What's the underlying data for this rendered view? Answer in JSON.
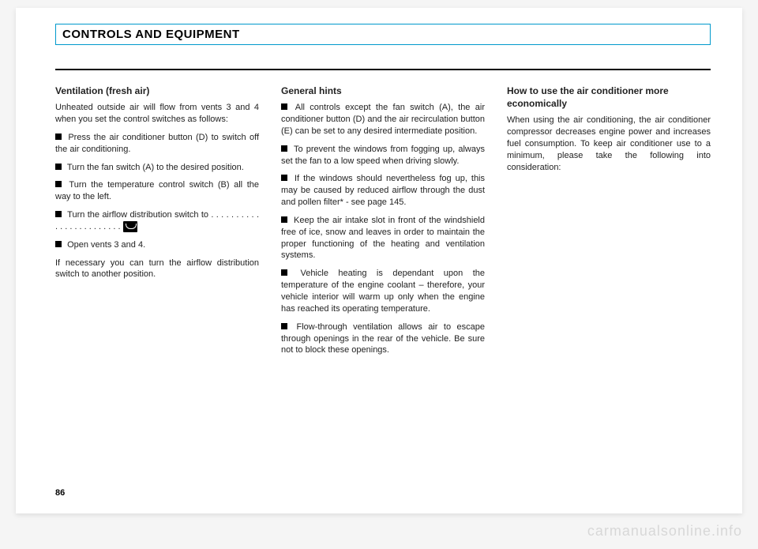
{
  "header": {
    "title": "CONTROLS AND EQUIPMENT"
  },
  "col1": {
    "heading": "Ventilation (fresh air)",
    "intro": "Unheated outside air will flow from vents 3 and 4 when you set the control switches as follows:",
    "b1": "Press the air conditioner button (D) to switch off the air conditioning.",
    "b2": "Turn the fan switch (A) to the desired position.",
    "b3": "Turn the temperature control switch (B) all the way to the left.",
    "b4": "Turn the airflow distribution switch to  . . . . . . . . . . . . . . . . . . . . . . . .",
    "b5": "Open vents 3 and 4.",
    "outro": "If necessary you can turn the airflow distribution switch to another position."
  },
  "col2": {
    "heading": "General hints",
    "b1": "All controls except the fan switch (A), the air conditioner button (D) and the air recirculation button (E) can be set to any desired intermediate position.",
    "b2": "To prevent the windows from fogging up, always set the fan to a low speed when driving slowly.",
    "b3": "If the windows should nevertheless fog up, this may be caused by reduced airflow through the dust and pollen filter* - see page 145.",
    "b4": "Keep the air intake slot in front of the windshield free of ice, snow and leaves in order to maintain the proper functioning of the heating and ventilation systems.",
    "b5": "Vehicle heating is dependant upon the temperature of the engine coolant – therefore, your vehicle interior will warm up only when the engine has reached its operating temperature.",
    "b6": "Flow-through ventilation allows air to escape through openings in the rear of the vehicle. Be sure not to block these openings."
  },
  "col3": {
    "heading": "How to use the air conditioner more economically",
    "p1": "When using the air conditioning, the air conditioner compressor decreases engine power and increases fuel consumption. To keep air conditioner use to a minimum, please take the following into consideration:"
  },
  "pageNumber": "86",
  "watermark": "carmanualsonline.info"
}
